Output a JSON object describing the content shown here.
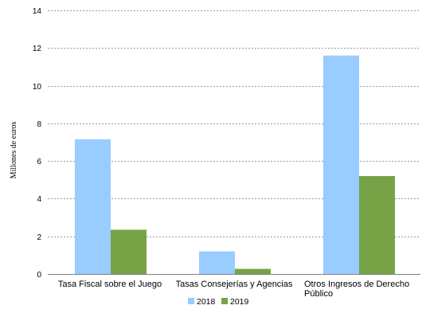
{
  "chart_data": {
    "type": "bar",
    "title": "",
    "xlabel": "",
    "ylabel": "Millones de euros",
    "ylim": [
      0,
      14
    ],
    "yticks": [
      0,
      2,
      4,
      6,
      8,
      10,
      12,
      14
    ],
    "grid": true,
    "legend_position": "bottom",
    "categories": [
      [
        "Tasa Fiscal sobre el Juego"
      ],
      [
        "Tasas Consejerías y Agencias"
      ],
      [
        "Otros Ingresos de Derecho",
        "Público"
      ]
    ],
    "series": [
      {
        "name": "2018",
        "color": "#99ccff",
        "values": [
          7.15,
          1.2,
          11.6
        ]
      },
      {
        "name": "2019",
        "color": "#77a346",
        "values": [
          2.35,
          0.27,
          5.2
        ]
      }
    ]
  }
}
